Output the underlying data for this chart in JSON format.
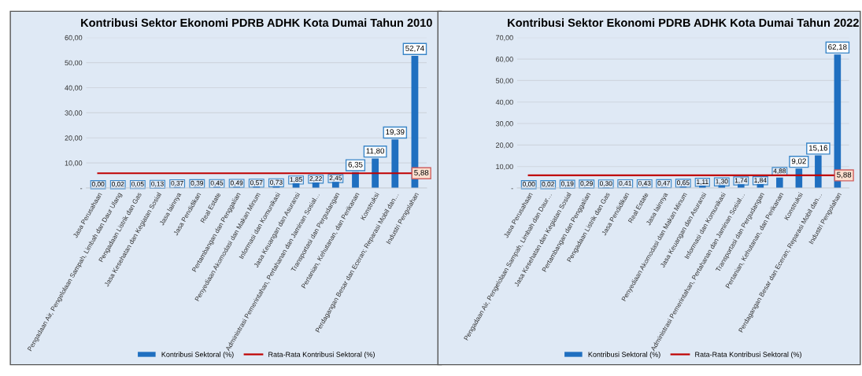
{
  "chart_data": [
    {
      "type": "bar",
      "title": "Kontribusi Sektor Ekonomi PDRB ADHK Kota Dumai Tahun 2010",
      "categories": [
        "Jasa Perusahaan",
        "Pengadaan Air, Pengelolaan Sampah, Limbah dan Daur Ulang",
        "Pengadaan Listrik dan Gas",
        "Jasa Kesehatan dan Kegiatan Sosial",
        "Jasa lainnya",
        "Jasa Pendidikan",
        "Real Estate",
        "Pertambangan dan Penggalian",
        "Penyediaan Akomodasi dan Makan Minum",
        "Informasi dan Komunikasi",
        "Jasa Keuangan dan Asuransi",
        "Administrasi Pemerintahan, Pertahanan dan Jaminan Sosial…",
        "Transportasi dan Pergudangan",
        "Pertanian, Kehutanan, dan Perikanan",
        "Konstruksi",
        "Perdagangan Besar dan Eceran; Reparasi Mobil dan…",
        "Industri Pengolahan"
      ],
      "series": [
        {
          "name": "Kontribusi Sektoral (%)",
          "color": "#1f6fc0",
          "values": [
            0.0,
            0.02,
            0.05,
            0.13,
            0.37,
            0.39,
            0.45,
            0.49,
            0.57,
            0.73,
            1.85,
            2.22,
            2.45,
            6.35,
            11.8,
            19.39,
            52.74
          ],
          "value_labels": [
            "0,00",
            "0,02",
            "0,05",
            "0,13",
            "0,37",
            "0,39",
            "0,45",
            "0,49",
            "0,57",
            "0,73",
            "1,85",
            "2,22",
            "2,45",
            "6,35",
            "11,80",
            "19,39",
            "52,74"
          ]
        },
        {
          "name": "Rata-Rata Kontribusi Sektoral (%)",
          "type": "line",
          "color": "#c00000",
          "values": [
            5.88,
            5.88,
            5.88,
            5.88,
            5.88,
            5.88,
            5.88,
            5.88,
            5.88,
            5.88,
            5.88,
            5.88,
            5.88,
            5.88,
            5.88,
            5.88,
            5.88
          ],
          "value_labels": [
            null,
            null,
            null,
            null,
            null,
            null,
            null,
            null,
            null,
            null,
            null,
            null,
            null,
            null,
            null,
            null,
            "5,88"
          ]
        }
      ],
      "ylim": [
        0,
        60
      ],
      "yticks": [
        {
          "value": 0,
          "label": "-"
        },
        {
          "value": 10,
          "label": "10,00"
        },
        {
          "value": 20,
          "label": "20,00"
        },
        {
          "value": 30,
          "label": "30,00"
        },
        {
          "value": 40,
          "label": "40,00"
        },
        {
          "value": 50,
          "label": "50,00"
        },
        {
          "value": 60,
          "label": "60,00"
        }
      ],
      "grid": "y",
      "legend": "bottom",
      "marker": "none"
    },
    {
      "type": "bar",
      "title": "Kontribusi Sektor Ekonomi PDRB ADHK Kota Dumai Tahun 2022",
      "categories": [
        "Jasa Perusahaan",
        "Pengadaan Air, Pengelolaan Sampah, Limbah dan Daur…",
        "Jasa Kesehatan dan Kegiatan Sosial",
        "Pertambangan dan Penggalian",
        "Pengadaan Listrik dan Gas",
        "Jasa Pendidikan",
        "Real Estate",
        "Jasa lainnya",
        "Penyediaan Akomodasi dan Makan Minum",
        "Jasa Keuangan dan Asuransi",
        "Informasi dan Komunikasi",
        "Administrasi Pemerintahan, Pertahanan dan Jaminan Sosial…",
        "Transportasi dan Pergudangan",
        "Pertanian, Kehutanan, dan Perikanan",
        "Konstruksi",
        "Perdagangan Besar dan Eceran; Reparasi Mobil dan…",
        "Industri Pengolahan"
      ],
      "series": [
        {
          "name": "Kontribusi Sektoral (%)",
          "color": "#1f6fc0",
          "values": [
            0.0,
            0.02,
            0.19,
            0.29,
            0.3,
            0.41,
            0.43,
            0.47,
            0.65,
            1.11,
            1.3,
            1.74,
            1.84,
            4.88,
            9.02,
            15.16,
            62.18
          ],
          "value_labels": [
            "0,00",
            "0,02",
            "0,19",
            "0,29",
            "0,30",
            "0,41",
            "0,43",
            "0,47",
            "0,65",
            "1,11",
            "1,30",
            "1,74",
            "1,84",
            "4,88",
            "9,02",
            "15,16",
            "62,18"
          ]
        },
        {
          "name": "Rata-Rata Kontribusi Sektoral (%)",
          "type": "line",
          "color": "#c00000",
          "values": [
            5.88,
            5.88,
            5.88,
            5.88,
            5.88,
            5.88,
            5.88,
            5.88,
            5.88,
            5.88,
            5.88,
            5.88,
            5.88,
            5.88,
            5.88,
            5.88,
            5.88
          ],
          "value_labels": [
            null,
            null,
            null,
            null,
            null,
            null,
            null,
            null,
            null,
            null,
            null,
            null,
            null,
            null,
            null,
            null,
            "5,88"
          ]
        }
      ],
      "ylim": [
        0,
        70
      ],
      "yticks": [
        {
          "value": 0,
          "label": "-"
        },
        {
          "value": 10,
          "label": "10,00"
        },
        {
          "value": 20,
          "label": "20,00"
        },
        {
          "value": 30,
          "label": "30,00"
        },
        {
          "value": 40,
          "label": "40,00"
        },
        {
          "value": 50,
          "label": "50,00"
        },
        {
          "value": 60,
          "label": "60,00"
        },
        {
          "value": 70,
          "label": "70,00"
        }
      ],
      "grid": "y",
      "legend": "bottom",
      "marker": "none"
    }
  ]
}
